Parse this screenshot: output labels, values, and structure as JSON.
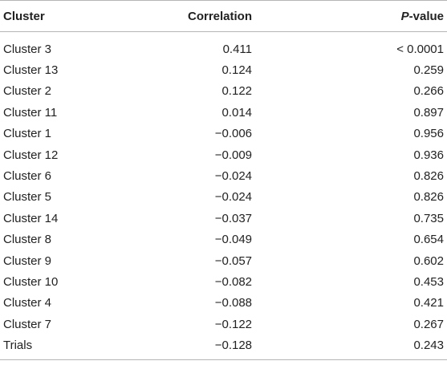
{
  "header": {
    "cluster": "Cluster",
    "correlation": "Correlation",
    "p_italic": "P",
    "p_rest": "-value"
  },
  "rows": [
    {
      "cluster": "Cluster 3",
      "correlation": "0.411",
      "p": "< 0.0001"
    },
    {
      "cluster": "Cluster 13",
      "correlation": "0.124",
      "p": "0.259"
    },
    {
      "cluster": "Cluster 2",
      "correlation": "0.122",
      "p": "0.266"
    },
    {
      "cluster": "Cluster 11",
      "correlation": "0.014",
      "p": "0.897"
    },
    {
      "cluster": "Cluster 1",
      "correlation": "−0.006",
      "p": "0.956"
    },
    {
      "cluster": "Cluster 12",
      "correlation": "−0.009",
      "p": "0.936"
    },
    {
      "cluster": "Cluster 6",
      "correlation": "−0.024",
      "p": "0.826"
    },
    {
      "cluster": "Cluster 5",
      "correlation": "−0.024",
      "p": "0.826"
    },
    {
      "cluster": "Cluster 14",
      "correlation": "−0.037",
      "p": "0.735"
    },
    {
      "cluster": "Cluster 8",
      "correlation": "−0.049",
      "p": "0.654"
    },
    {
      "cluster": "Cluster 9",
      "correlation": "−0.057",
      "p": "0.602"
    },
    {
      "cluster": "Cluster 10",
      "correlation": "−0.082",
      "p": "0.453"
    },
    {
      "cluster": "Cluster 4",
      "correlation": "−0.088",
      "p": "0.421"
    },
    {
      "cluster": "Cluster 7",
      "correlation": "−0.122",
      "p": "0.267"
    },
    {
      "cluster": "Trials",
      "correlation": "−0.128",
      "p": "0.243"
    }
  ]
}
